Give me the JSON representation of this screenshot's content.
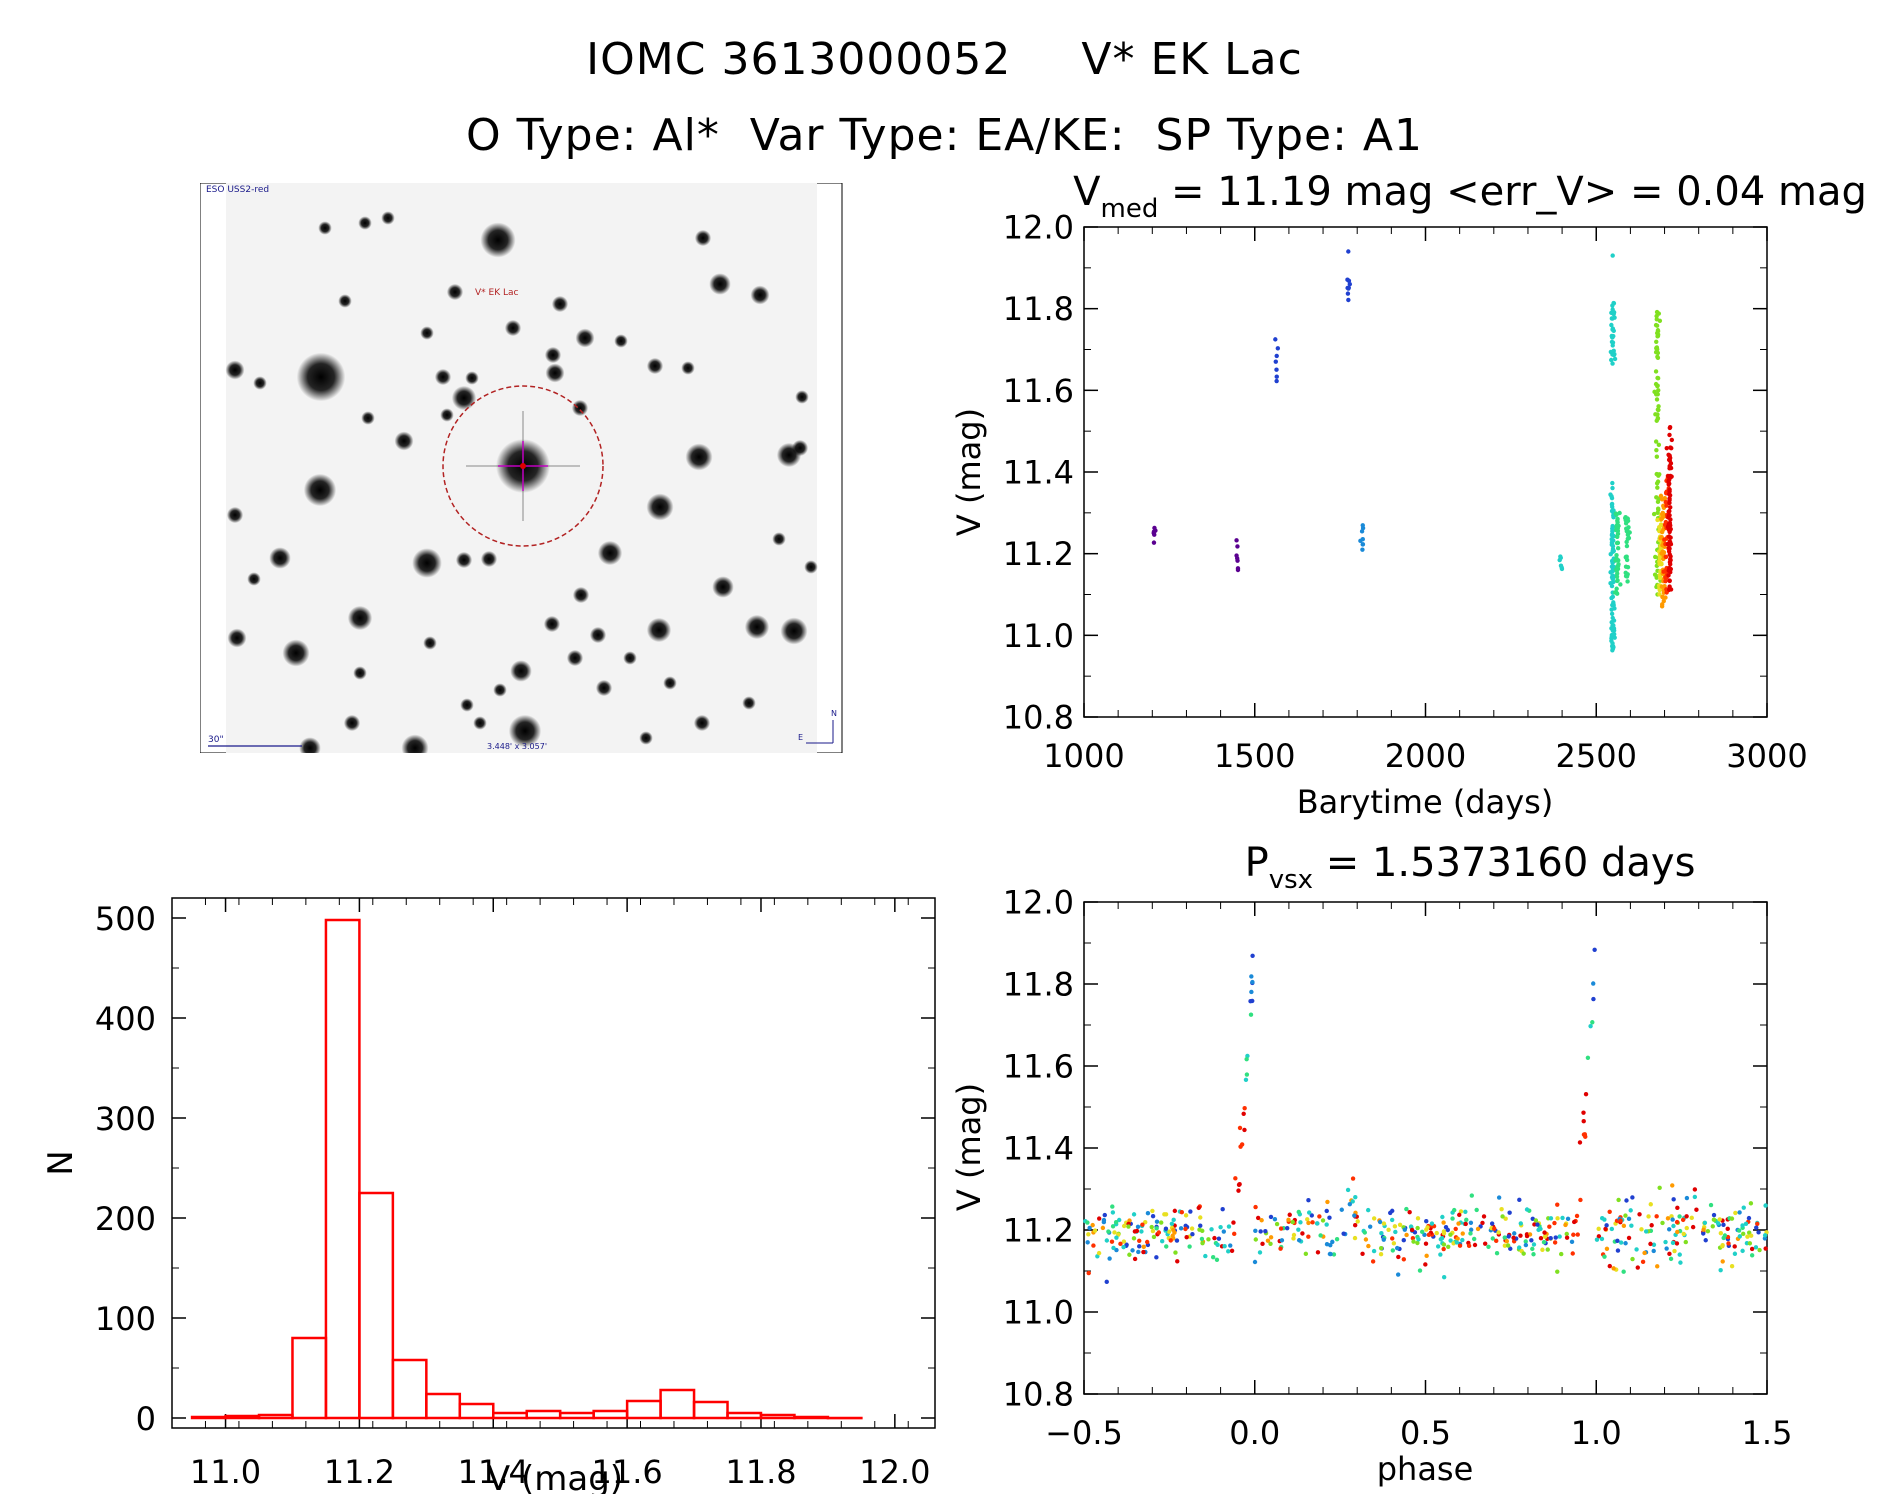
{
  "header": {
    "star_id": "IOMC 3613000052",
    "star_name": "V* EK Lac",
    "line2": "O Type: Al*  Var Type: EA/KE:  SP Type: A1"
  },
  "finder": {
    "survey_label": "ESO USS2-red",
    "target_label": "V* EK Lac",
    "scale_label": "30\"",
    "fov_label": "3.448' x 3.057'",
    "north_label": "N",
    "east_label": "E"
  },
  "colors": {
    "hist": "#ff0000",
    "circle": "#b22222",
    "crosshair": "#c000c0",
    "rainbow": [
      "#5a0090",
      "#2040d0",
      "#1a8ad8",
      "#20d0c8",
      "#30e080",
      "#80e020",
      "#e8e020",
      "#ff9a00",
      "#ff3000",
      "#e00000"
    ]
  },
  "chart_data": [
    {
      "type": "histogram",
      "title": "",
      "xlabel": "V (mag)",
      "ylabel": "N",
      "xlim": [
        10.92,
        12.06
      ],
      "ylim": [
        0,
        520
      ],
      "xticks": [
        "11.0",
        "11.2",
        "11.4",
        "11.6",
        "11.8",
        "12.0"
      ],
      "yticks": [
        "0",
        "100",
        "200",
        "300",
        "400",
        "500"
      ],
      "bin_width": 0.05,
      "bin_starts": [
        10.95,
        11.0,
        11.05,
        11.1,
        11.15,
        11.2,
        11.25,
        11.3,
        11.35,
        11.4,
        11.45,
        11.5,
        11.55,
        11.6,
        11.65,
        11.7,
        11.75,
        11.8,
        11.85,
        11.9
      ],
      "counts": [
        1,
        2,
        3,
        80,
        498,
        225,
        58,
        24,
        14,
        5,
        7,
        5,
        7,
        17,
        28,
        16,
        5,
        3,
        1,
        0
      ]
    },
    {
      "type": "scatter",
      "title": "V_med = 11.19 mag <err_V> = 0.04 mag",
      "title_main": "V",
      "title_sub": "med",
      "title_rest": " = 11.19 mag <err_V> = 0.04 mag",
      "xlabel": "Barytime (days)",
      "ylabel": "V (mag)",
      "xlim": [
        1000,
        3000
      ],
      "ylim": [
        12.0,
        10.8
      ],
      "xticks": [
        "1000",
        "1500",
        "2000",
        "2500",
        "3000"
      ],
      "yticks": [
        "10.8",
        "11.0",
        "11.2",
        "11.4",
        "11.6",
        "11.8",
        "12.0"
      ],
      "groups": [
        {
          "x": 1205,
          "ymin": 11.2,
          "ymax": 11.28,
          "n": 6,
          "color": 0
        },
        {
          "x": 1450,
          "ymin": 11.15,
          "ymax": 11.24,
          "n": 7,
          "color": 0
        },
        {
          "x": 1565,
          "ymin": 11.62,
          "ymax": 11.74,
          "n": 7,
          "color": 1
        },
        {
          "x": 1775,
          "ymin": 11.82,
          "ymax": 11.88,
          "n": 8,
          "color": 1
        },
        {
          "x": 1775,
          "ymin": 11.94,
          "ymax": 11.94,
          "n": 1,
          "color": 1
        },
        {
          "x": 1815,
          "ymin": 11.16,
          "ymax": 11.27,
          "n": 8,
          "color": 2
        },
        {
          "x": 2395,
          "ymin": 11.15,
          "ymax": 11.2,
          "n": 6,
          "color": 3
        },
        {
          "x": 2548,
          "ymin": 10.96,
          "ymax": 11.38,
          "n": 90,
          "color": 3
        },
        {
          "x": 2548,
          "ymin": 11.65,
          "ymax": 11.82,
          "n": 30,
          "color": 3
        },
        {
          "x": 2555,
          "ymin": 11.93,
          "ymax": 11.93,
          "n": 1,
          "color": 3
        },
        {
          "x": 2562,
          "ymin": 11.1,
          "ymax": 11.3,
          "n": 40,
          "color": 4
        },
        {
          "x": 2590,
          "ymin": 11.13,
          "ymax": 11.3,
          "n": 30,
          "color": 4
        },
        {
          "x": 2680,
          "ymin": 11.1,
          "ymax": 11.5,
          "n": 40,
          "color": 5
        },
        {
          "x": 2678,
          "ymin": 11.52,
          "ymax": 11.8,
          "n": 40,
          "color": 5
        },
        {
          "x": 2688,
          "ymin": 11.1,
          "ymax": 11.3,
          "n": 40,
          "color": 6
        },
        {
          "x": 2696,
          "ymin": 11.07,
          "ymax": 11.35,
          "n": 50,
          "color": 7
        },
        {
          "x": 2705,
          "ymin": 11.1,
          "ymax": 11.4,
          "n": 40,
          "color": 8
        },
        {
          "x": 2715,
          "ymin": 11.11,
          "ymax": 11.51,
          "n": 80,
          "color": 9
        }
      ]
    },
    {
      "type": "scatter",
      "title": "P_vsx = 1.5373160 days",
      "title_main": "P",
      "title_sub": "vsx",
      "title_rest": " = 1.5373160 days",
      "xlabel": "phase",
      "ylabel": "V (mag)",
      "xlim": [
        -0.5,
        1.5
      ],
      "ylim": [
        12.0,
        10.8
      ],
      "xticks": [
        "−0.5",
        "0.0",
        "0.5",
        "1.0",
        "1.5"
      ],
      "yticks": [
        "10.8",
        "11.0",
        "11.2",
        "11.4",
        "11.6",
        "11.8",
        "12.0"
      ],
      "period_days": 1.537316,
      "median_mag": 11.19,
      "primary_eclipse_depth_mag": 0.75,
      "secondary_eclipse_depth_mag": 0.07
    }
  ]
}
